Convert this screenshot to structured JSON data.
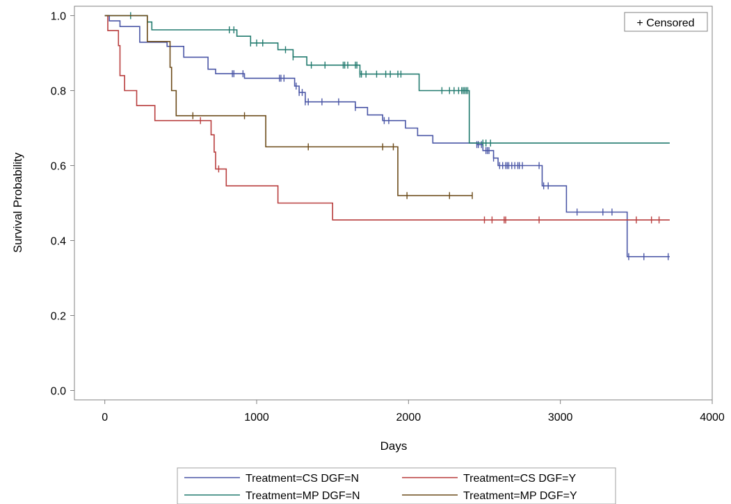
{
  "chart_data": {
    "type": "line",
    "xlabel": "Days",
    "ylabel": "Survival Probability",
    "xlim": [
      -200,
      4000
    ],
    "ylim": [
      -0.025,
      1.025
    ],
    "xticks": [
      0,
      1000,
      2000,
      3000,
      4000
    ],
    "yticks": [
      0.0,
      0.2,
      0.4,
      0.6,
      0.8,
      1.0
    ],
    "xtick_labels": [
      "0",
      "1000",
      "2000",
      "3000",
      "4000"
    ],
    "ytick_labels": [
      "0.0",
      "0.2",
      "0.4",
      "0.6",
      "0.8",
      "1.0"
    ],
    "censored_label": "+ Censored",
    "legend_position": "bottom",
    "series": [
      {
        "name": "Treatment=CS DGF=N",
        "color": "#4a56a6",
        "x": [
          0,
          30,
          100,
          230,
          410,
          520,
          680,
          730,
          920,
          1000,
          1250,
          1280,
          1320,
          1650,
          1730,
          1830,
          1980,
          2060,
          2160,
          2450,
          2490,
          2560,
          2590,
          2880,
          2880,
          3040,
          3440,
          3440,
          3720
        ],
        "y": [
          1.0,
          0.986,
          0.971,
          0.929,
          0.918,
          0.889,
          0.857,
          0.845,
          0.833,
          0.833,
          0.812,
          0.795,
          0.77,
          0.755,
          0.735,
          0.72,
          0.7,
          0.68,
          0.66,
          0.656,
          0.64,
          0.62,
          0.6,
          0.6,
          0.546,
          0.476,
          0.476,
          0.357,
          0.357
        ],
        "censored_x": [
          840,
          850,
          910,
          1150,
          1160,
          1180,
          1260,
          1280,
          1300,
          1320,
          1340,
          1430,
          1540,
          1650,
          1840,
          1870,
          2450,
          2460,
          2480,
          2510,
          2520,
          2530,
          2560,
          2600,
          2620,
          2640,
          2650,
          2660,
          2680,
          2700,
          2720,
          2730,
          2750,
          2860,
          2890,
          2920,
          3110,
          3280,
          3340,
          3450,
          3550,
          3710
        ]
      },
      {
        "name": "Treatment=CS DGF=Y",
        "color": "#b83d3d",
        "x": [
          0,
          20,
          90,
          100,
          130,
          210,
          330,
          600,
          700,
          720,
          730,
          780,
          800,
          1140,
          1500,
          3720
        ],
        "y": [
          1.0,
          0.96,
          0.92,
          0.84,
          0.8,
          0.76,
          0.72,
          0.72,
          0.682,
          0.636,
          0.591,
          0.591,
          0.546,
          0.5,
          0.455,
          0.455
        ],
        "censored_x": [
          630,
          750,
          2500,
          2550,
          2630,
          2640,
          2860,
          3500,
          3600,
          3650
        ]
      },
      {
        "name": "Treatment=MP DGF=N",
        "color": "#217a6e",
        "x": [
          0,
          280,
          310,
          870,
          960,
          1140,
          1240,
          1330,
          1680,
          2070,
          2400,
          2400,
          3720
        ],
        "y": [
          1.0,
          0.983,
          0.962,
          0.945,
          0.927,
          0.909,
          0.89,
          0.868,
          0.844,
          0.8,
          0.8,
          0.66,
          0.66
        ],
        "censored_x": [
          170,
          820,
          850,
          960,
          1000,
          1040,
          1190,
          1240,
          1360,
          1450,
          1570,
          1580,
          1600,
          1650,
          1660,
          1680,
          1690,
          1720,
          1790,
          1850,
          1880,
          1930,
          1950,
          2220,
          2270,
          2300,
          2330,
          2350,
          2360,
          2370,
          2380,
          2390,
          2490,
          2510,
          2540
        ]
      },
      {
        "name": "Treatment=MP DGF=Y",
        "color": "#6b4a18",
        "x": [
          0,
          280,
          430,
          440,
          470,
          1060,
          1930,
          2420
        ],
        "y": [
          1.0,
          0.931,
          0.862,
          0.8,
          0.733,
          0.65,
          0.52,
          0.52
        ],
        "censored_x": [
          580,
          920,
          1340,
          1830,
          1900,
          1990,
          2270,
          2420
        ]
      }
    ]
  }
}
